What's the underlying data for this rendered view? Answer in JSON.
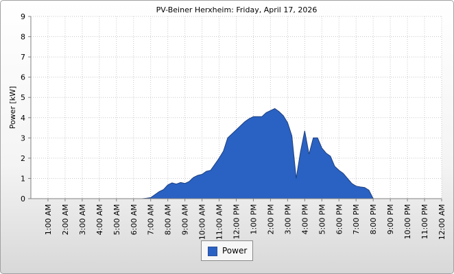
{
  "chart_data": {
    "type": "area",
    "title": "PV-Beiner Herxheim: Friday, April 17, 2026",
    "ylabel": "Power [kW]",
    "xlabel": "",
    "ylim": [
      0,
      9
    ],
    "y_ticks": [
      "0",
      "1",
      "2",
      "3",
      "4",
      "5",
      "6",
      "7",
      "8",
      "9"
    ],
    "x_range_hours": [
      0,
      24
    ],
    "x_ticks": [
      "1:00 AM",
      "2:00 AM",
      "3:00 AM",
      "4:00 AM",
      "5:00 AM",
      "6:00 AM",
      "7:00 AM",
      "8:00 AM",
      "9:00 AM",
      "10:00 AM",
      "11:00 AM",
      "12:00 PM",
      "1:00 PM",
      "2:00 PM",
      "3:00 PM",
      "4:00 PM",
      "5:00 PM",
      "6:00 PM",
      "7:00 PM",
      "8:00 PM",
      "9:00 PM",
      "10:00 PM",
      "11:00 PM",
      "12:00 AM"
    ],
    "grid": true,
    "legend_placement": "bottom-center",
    "series": [
      {
        "name": "Power",
        "color": "#2a62c3",
        "x": [
          "6:30 AM",
          "6:45 AM",
          "7:00 AM",
          "7:15 AM",
          "7:30 AM",
          "7:45 AM",
          "8:00 AM",
          "8:15 AM",
          "8:30 AM",
          "8:45 AM",
          "9:00 AM",
          "9:15 AM",
          "9:30 AM",
          "9:45 AM",
          "10:00 AM",
          "10:15 AM",
          "10:30 AM",
          "10:45 AM",
          "11:00 AM",
          "11:15 AM",
          "11:30 AM",
          "11:45 AM",
          "12:00 PM",
          "12:15 PM",
          "12:30 PM",
          "12:45 PM",
          "1:00 PM",
          "1:15 PM",
          "1:30 PM",
          "1:45 PM",
          "2:00 PM",
          "2:15 PM",
          "2:30 PM",
          "2:45 PM",
          "3:00 PM",
          "3:15 PM",
          "3:30 PM",
          "3:45 PM",
          "4:00 PM",
          "4:15 PM",
          "4:30 PM",
          "4:45 PM",
          "5:00 PM",
          "5:15 PM",
          "5:30 PM",
          "5:45 PM",
          "6:00 PM",
          "6:15 PM",
          "6:30 PM",
          "6:45 PM",
          "7:00 PM",
          "7:15 PM",
          "7:30 PM",
          "7:45 PM",
          "8:00 PM"
        ],
        "values": [
          0.0,
          0.02,
          0.05,
          0.2,
          0.35,
          0.45,
          0.68,
          0.78,
          0.72,
          0.8,
          0.75,
          0.85,
          1.05,
          1.15,
          1.2,
          1.35,
          1.4,
          1.7,
          2.0,
          2.35,
          3.0,
          3.2,
          3.4,
          3.6,
          3.8,
          3.95,
          4.05,
          4.05,
          4.05,
          4.25,
          4.35,
          4.45,
          4.3,
          4.1,
          3.75,
          3.1,
          1.0,
          2.3,
          3.35,
          2.2,
          3.0,
          3.0,
          2.5,
          2.25,
          2.1,
          1.6,
          1.4,
          1.25,
          1.0,
          0.75,
          0.62,
          0.58,
          0.55,
          0.42,
          0.0
        ]
      }
    ]
  }
}
